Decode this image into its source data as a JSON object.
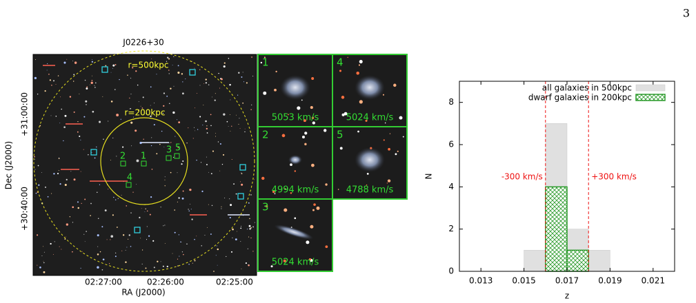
{
  "page_number": "3",
  "sky_map": {
    "title": "J0226+30",
    "x_label": "RA (J2000)",
    "y_label": "Dec (J2000)",
    "x_ticks": [
      "02:27:00",
      "02:26:00",
      "02:25:00"
    ],
    "y_ticks": [
      "+31:00:00",
      "+30:40:00"
    ],
    "circles": [
      "r=500kpc",
      "r=200kpc"
    ],
    "markers": [
      "1",
      "2",
      "3",
      "4",
      "5"
    ]
  },
  "cutouts": [
    {
      "label": "1",
      "velocity": "5053 km/s"
    },
    {
      "label": "4",
      "velocity": "5024 km/s"
    },
    {
      "label": "2",
      "velocity": "4994 km/s"
    },
    {
      "label": "5",
      "velocity": "4788 km/s"
    },
    {
      "label": "3",
      "velocity": "5024 km/s"
    }
  ],
  "chart_data": {
    "type": "histogram",
    "x_label": "z",
    "y_label": "N",
    "bins": [
      0.015,
      0.016,
      0.017,
      0.018,
      0.019
    ],
    "series": [
      {
        "name": "all galaxies in 500kpc",
        "color": "#e0e0e0",
        "values": [
          1,
          7,
          2,
          1
        ]
      },
      {
        "name": "dwarf galaxies in 200kpc",
        "color": "#2a9a2a",
        "values": [
          0,
          4,
          1,
          0
        ]
      }
    ],
    "xlim": [
      0.012,
      0.022
    ],
    "ylim": [
      0,
      9
    ],
    "xticks": [
      0.013,
      0.015,
      0.017,
      0.019,
      0.021
    ],
    "yticks": [
      0,
      2,
      4,
      6,
      8
    ],
    "vlines": [
      {
        "value": 0.016,
        "label": "-300 km/s"
      },
      {
        "value": 0.018,
        "label": "+300 km/s"
      }
    ],
    "legend": "upper right"
  }
}
